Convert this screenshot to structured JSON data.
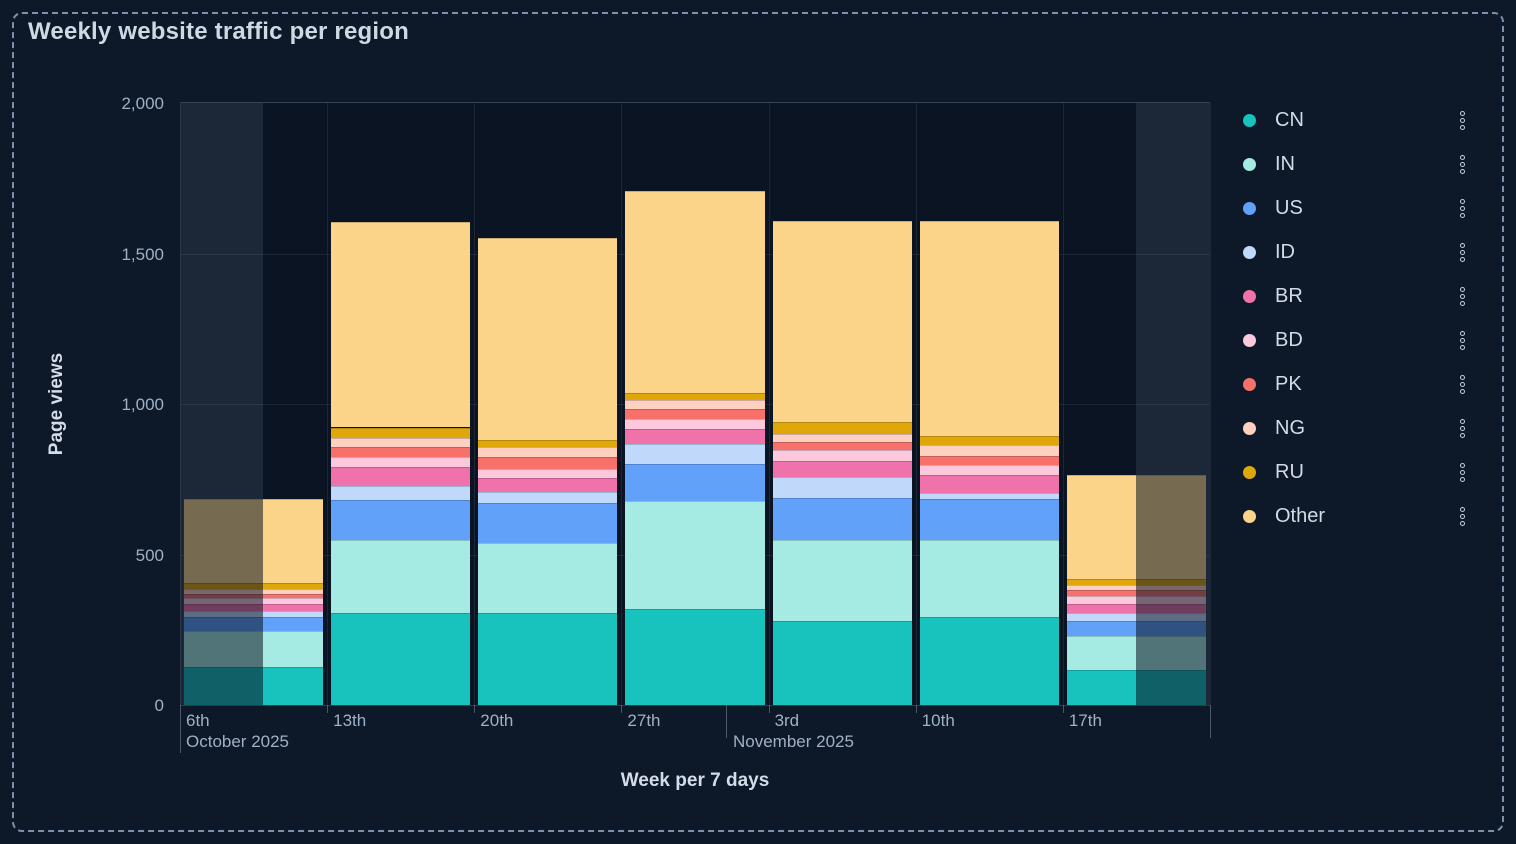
{
  "title": "Weekly website traffic per region",
  "y_axis": {
    "title": "Page views",
    "tick_labels": [
      "2,000",
      "1,500",
      "1,000",
      "500",
      "0"
    ],
    "min": 0,
    "max": 2000
  },
  "x_axis": {
    "title": "Week per 7 days",
    "week_labels": [
      "6th",
      "13th",
      "20th",
      "27th",
      "3rd",
      "10th",
      "17th"
    ],
    "month_labels": [
      "October 2025",
      "November 2025"
    ]
  },
  "legend": {
    "position": "right",
    "menu_icon": "kebab-vertical-icon"
  },
  "chart_data": {
    "type": "bar",
    "stacked": true,
    "title": "Weekly website traffic per region",
    "xlabel": "Week per 7 days",
    "ylabel": "Page views",
    "ylim": [
      0,
      2000
    ],
    "grid": true,
    "legend_position": "right",
    "categories": [
      "6th",
      "13th",
      "20th",
      "27th",
      "3rd",
      "10th",
      "17th"
    ],
    "series": [
      {
        "name": "CN",
        "color": "#18c2bd",
        "values": [
          125,
          305,
          305,
          318,
          280,
          291,
          116
        ]
      },
      {
        "name": "IN",
        "color": "#a6ebe3",
        "values": [
          120,
          243,
          232,
          360,
          268,
          257,
          113
        ]
      },
      {
        "name": "US",
        "color": "#61a1fa",
        "values": [
          47,
          133,
          135,
          123,
          139,
          135,
          49
        ]
      },
      {
        "name": "ID",
        "color": "#c0d9fa",
        "values": [
          20,
          47,
          35,
          65,
          71,
          20,
          27
        ]
      },
      {
        "name": "BR",
        "color": "#f072aa",
        "values": [
          24,
          62,
          47,
          50,
          52,
          61,
          29
        ]
      },
      {
        "name": "BD",
        "color": "#fcc8dc",
        "values": [
          18,
          35,
          30,
          35,
          37,
          33,
          27
        ]
      },
      {
        "name": "PK",
        "color": "#f7716a",
        "values": [
          15,
          33,
          40,
          31,
          27,
          30,
          22
        ]
      },
      {
        "name": "NG",
        "color": "#fdd0c0",
        "values": [
          15,
          28,
          33,
          31,
          28,
          37,
          16
        ]
      },
      {
        "name": "RU",
        "color": "#dfa70a",
        "values": [
          22,
          36,
          24,
          24,
          39,
          30,
          21
        ]
      },
      {
        "name": "Other",
        "color": "#fbd489",
        "values": [
          280,
          684,
          671,
          672,
          667,
          714,
          345
        ]
      }
    ],
    "partial_week_dimmed": {
      "first_category": "6th",
      "last_category": "17th"
    }
  }
}
